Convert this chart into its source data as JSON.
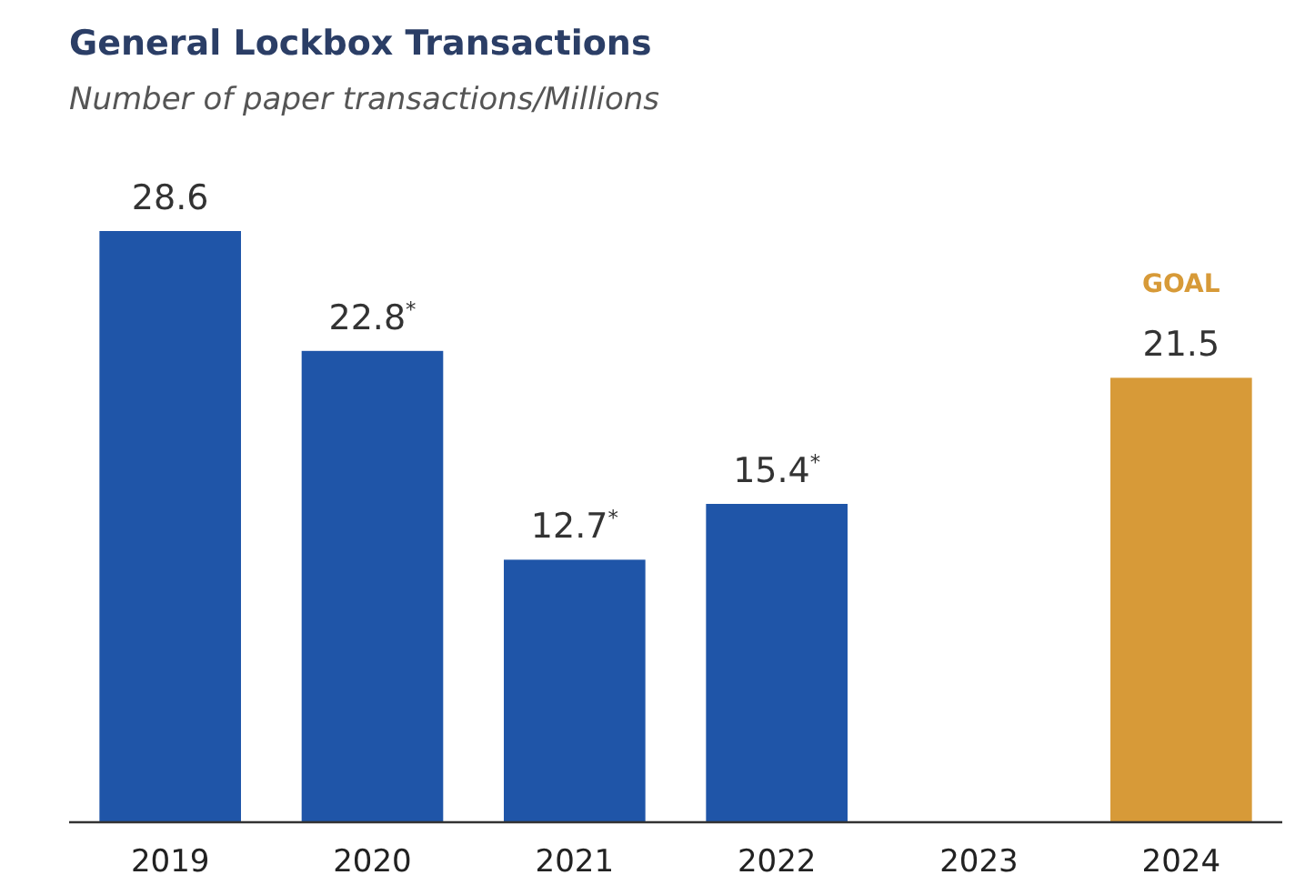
{
  "chart_data": {
    "type": "bar",
    "title": "General Lockbox Transactions",
    "subtitle": "Number of paper transactions/Millions",
    "categories": [
      "2019",
      "2020",
      "2021",
      "2022",
      "2023",
      "2024"
    ],
    "values": [
      28.6,
      22.8,
      12.7,
      15.4,
      null,
      21.5
    ],
    "colors": [
      "#1f55a8",
      "#1f55a8",
      "#1f55a8",
      "#1f55a8",
      null,
      "#d79a38"
    ],
    "value_labels": [
      "28.6",
      "22.8$^{*}$",
      "12.7$^{*}$",
      "15.4$^{*}$",
      null,
      "21.5"
    ],
    "annotations": [
      "GOAL"
    ]
  }
}
